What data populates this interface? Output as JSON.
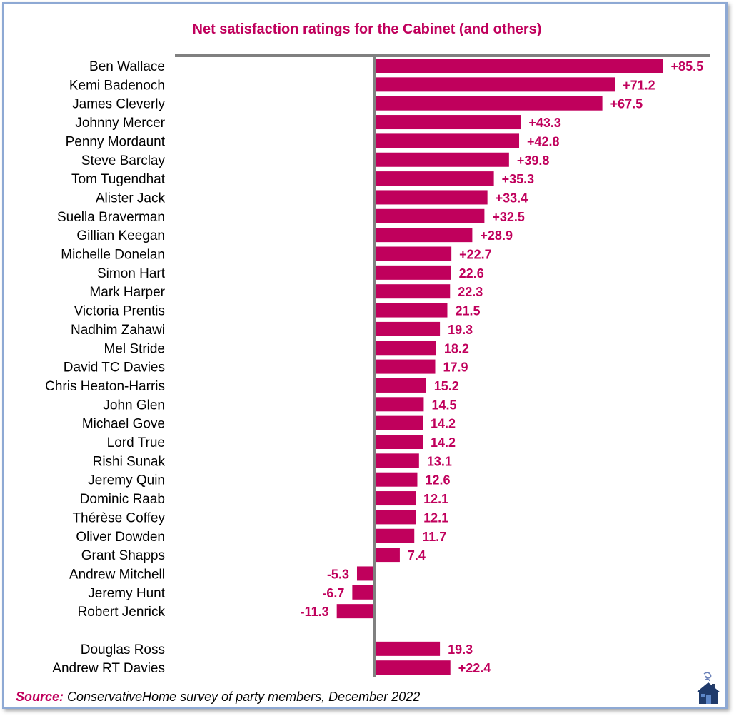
{
  "chart_data": {
    "type": "bar",
    "orientation": "horizontal",
    "title": "Net satisfaction ratings for the Cabinet (and others)",
    "xlim": [
      -13,
      87
    ],
    "bar_color": "#c0005c",
    "label_color": "#c0005c",
    "categories": [
      "Ben Wallace",
      "Kemi Badenoch",
      "James Cleverly",
      "Johnny Mercer",
      "Penny Mordaunt",
      "Steve Barclay",
      "Tom Tugendhat",
      "Alister Jack",
      "Suella Braverman",
      "Gillian Keegan",
      "Michelle Donelan",
      "Simon Hart",
      "Mark Harper",
      "Victoria Prentis",
      "Nadhim Zahawi",
      "Mel Stride",
      "David TC Davies",
      "Chris Heaton-Harris",
      "John Glen",
      "Michael Gove",
      "Lord True",
      "Rishi Sunak",
      "Jeremy Quin",
      "Dominic Raab",
      "Thérèse Coffey",
      "Oliver Dowden",
      "Grant Shapps",
      "Andrew Mitchell",
      "Jeremy Hunt",
      "Robert Jenrick",
      "",
      "Douglas Ross",
      "Andrew RT Davies"
    ],
    "values": [
      85.5,
      71.2,
      67.5,
      43.3,
      42.8,
      39.8,
      35.3,
      33.4,
      32.5,
      28.9,
      22.7,
      22.6,
      22.3,
      21.5,
      19.3,
      18.2,
      17.9,
      15.2,
      14.5,
      14.2,
      14.2,
      13.1,
      12.6,
      12.1,
      12.1,
      11.7,
      7.4,
      -5.3,
      -6.7,
      -11.3,
      null,
      19.3,
      22.4
    ],
    "data_labels": [
      "+85.5",
      "+71.2",
      "+67.5",
      "+43.3",
      "+42.8",
      "+39.8",
      "+35.3",
      "+33.4",
      "+32.5",
      "+28.9",
      "+22.7",
      "22.6",
      "22.3",
      "21.5",
      "19.3",
      "18.2",
      "17.9",
      "15.2",
      "14.5",
      "14.2",
      "14.2",
      "13.1",
      "12.6",
      "12.1",
      "12.1",
      "11.7",
      "7.4",
      "-5.3",
      "-6.7",
      "-11.3",
      "",
      "19.3",
      "+22.4"
    ]
  },
  "source": {
    "label": "Source:",
    "text": " ConservativeHome survey of party members, December 2022"
  },
  "logo_icon": "conservativehome-house-icon"
}
